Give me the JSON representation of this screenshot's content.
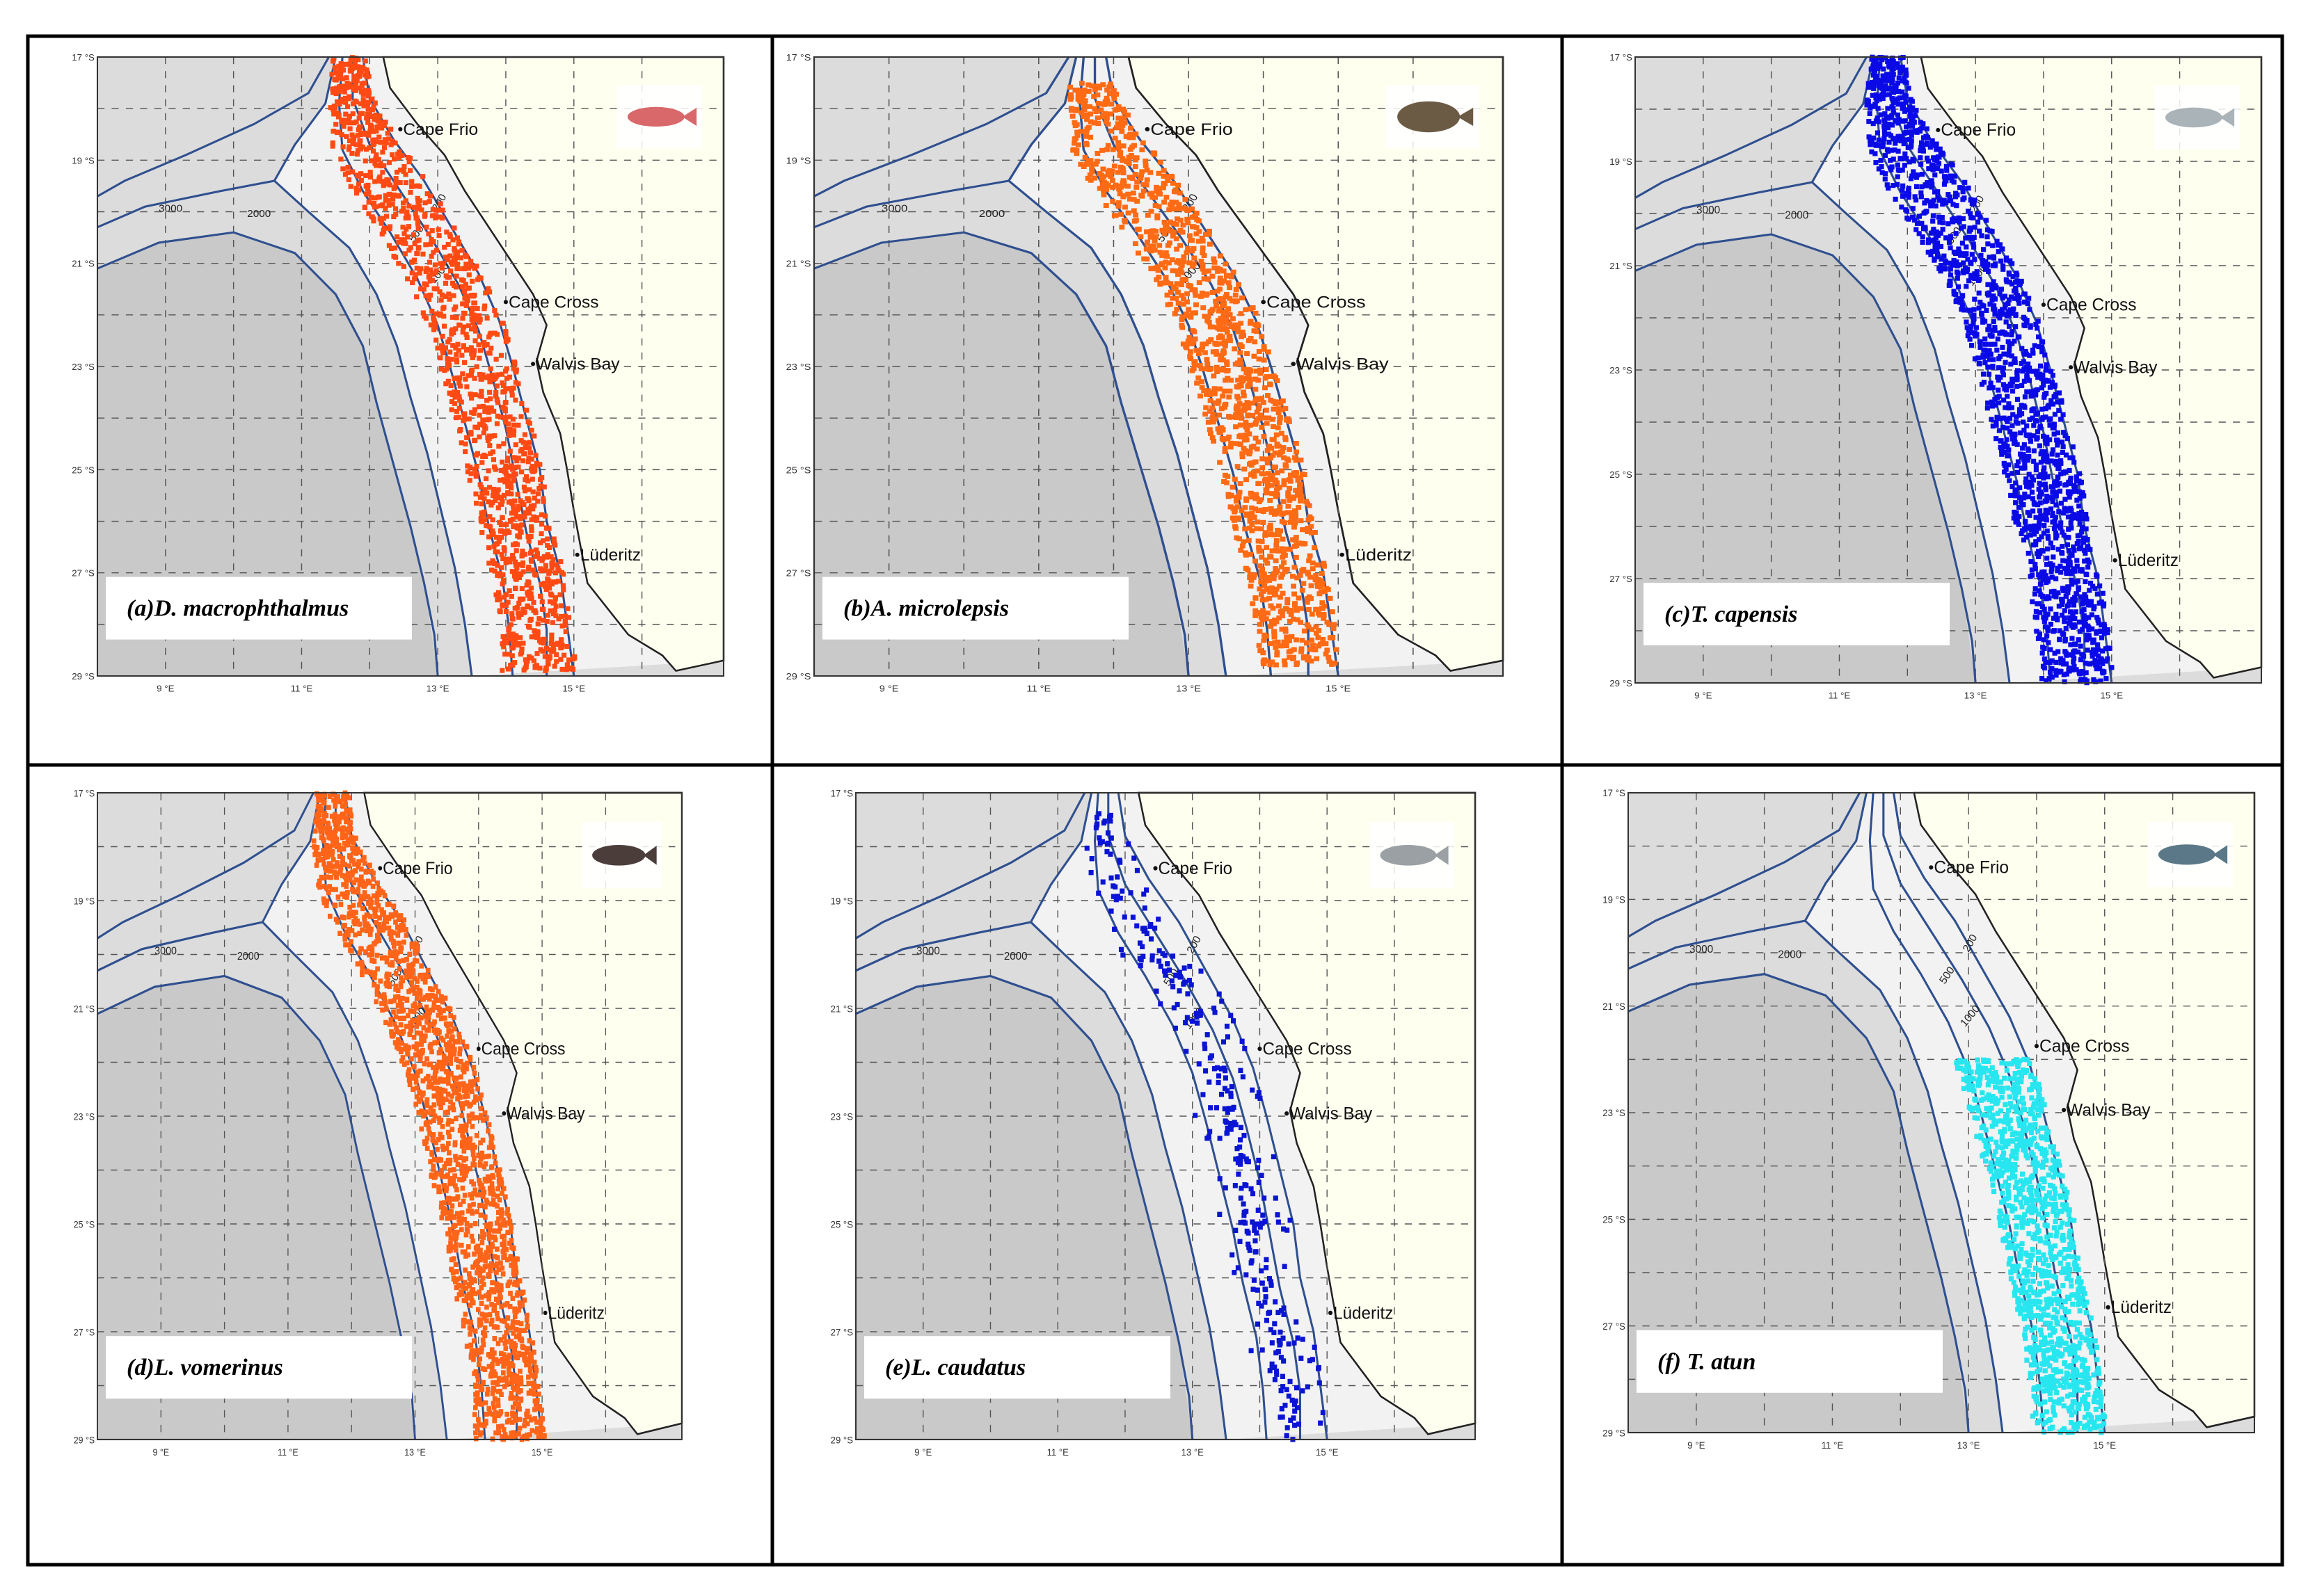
{
  "axis": {
    "lat_labels": [
      "17 °S",
      "19 °S",
      "21 °S",
      "23 °S",
      "25 °S",
      "27 °S",
      "29 °S"
    ],
    "lon_labels": [
      "9 °E",
      "11 °E",
      "13 °E",
      "15 °E"
    ]
  },
  "places": {
    "cape_frio": "Cape Frio",
    "cape_cross": "Cape Cross",
    "walvis_bay": "Walvis Bay",
    "luderitz": "Lüderitz"
  },
  "isobaths": [
    "200",
    "500",
    "1000",
    "2000",
    "3000"
  ],
  "panels": [
    {
      "label": "(a)D. macrophthalmus",
      "color": "#ff4a14",
      "fish_icon": "redfish-icon"
    },
    {
      "label": "(b)A. microlepsis",
      "color": "#ff6a14",
      "fish_icon": "flatfish-icon"
    },
    {
      "label": "(c)T. capensis",
      "color": "#0a0ae6",
      "fish_icon": "horse-mackerel-icon"
    },
    {
      "label": "(d)L. vomerinus",
      "color": "#ff6418",
      "fish_icon": "monkfish-icon"
    },
    {
      "label": "(e)L. caudatus",
      "color": "#0a14d2",
      "fish_icon": "snoek-icon"
    },
    {
      "label": "(f) T. atun",
      "color": "#28e6f0",
      "fish_icon": "tuna-icon"
    }
  ],
  "colors": {
    "land": "#fffff0",
    "isobath": "#2f4f8f",
    "ocean": "#dcdcdc",
    "shelf": "#f2f2f2"
  }
}
